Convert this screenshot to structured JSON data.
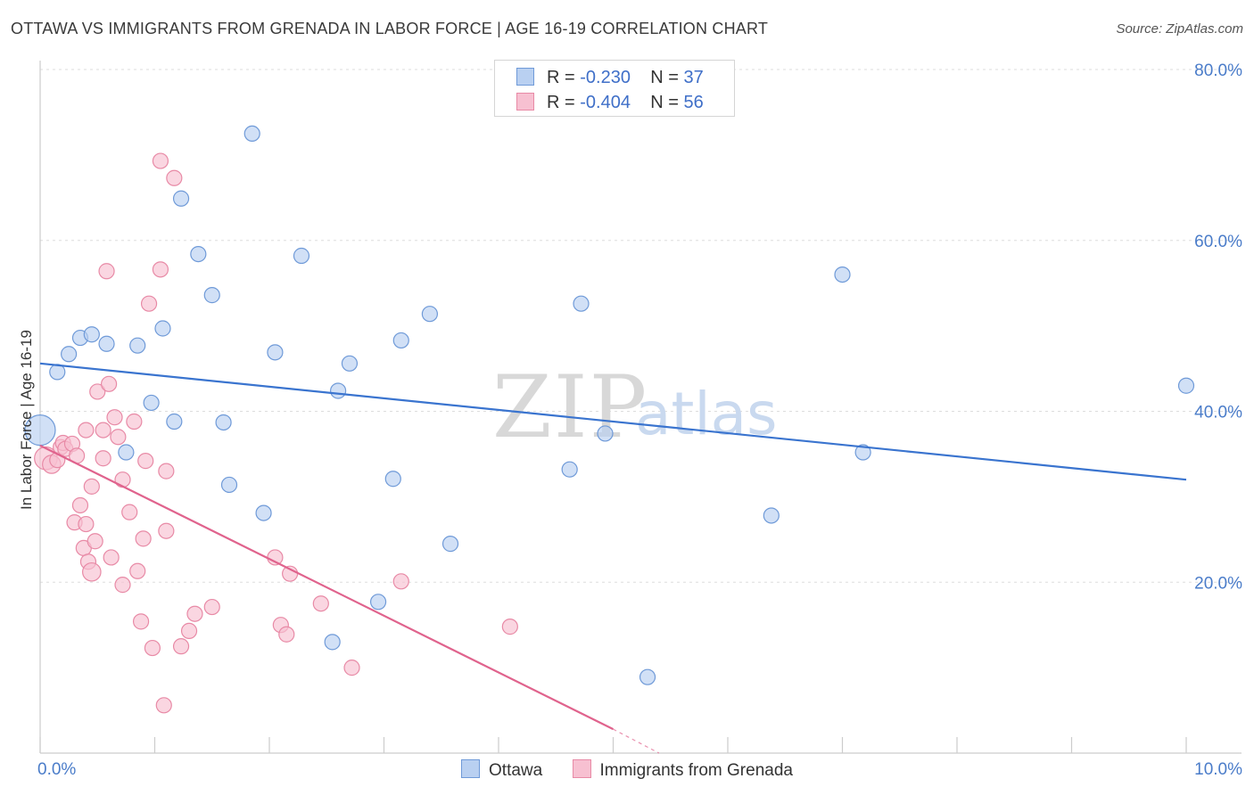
{
  "header": {
    "title": "OTTAWA VS IMMIGRANTS FROM GRENADA IN LABOR FORCE | AGE 16-19 CORRELATION CHART",
    "source": "Source: ZipAtlas.com"
  },
  "legend": {
    "r_label": "R =",
    "n_label": "N =",
    "series": [
      {
        "name": "Ottawa",
        "r": "-0.230",
        "n": "37",
        "fill": "#b9d0f1",
        "stroke": "#6f9ad8"
      },
      {
        "name": "Immigrants from Grenada",
        "r": "-0.404",
        "n": "56",
        "fill": "#f7c0d1",
        "stroke": "#e88aa6"
      }
    ]
  },
  "watermark": {
    "zip": "ZIP",
    "atlas": "atlas"
  },
  "chart_data": {
    "type": "scatter",
    "title": "OTTAWA VS IMMIGRANTS FROM GRENADA IN LABOR FORCE | AGE 16-19 CORRELATION CHART",
    "xlabel": "",
    "ylabel": "In Labor Force | Age 16-19",
    "xlim": [
      0,
      10
    ],
    "ylim": [
      0,
      80
    ],
    "x_tick_labels": [
      "0.0%",
      "10.0%"
    ],
    "y_ticks": [
      20,
      40,
      60,
      80
    ],
    "y_tick_labels": [
      "20.0%",
      "40.0%",
      "60.0%",
      "80.0%"
    ],
    "grid": true,
    "series": [
      {
        "name": "Ottawa",
        "color": "#3a74cf",
        "marker_fill": "#b9d0f1",
        "marker_stroke": "#6f9ad8",
        "trend": {
          "x1": 0,
          "y1": 45.6,
          "x2": 10,
          "y2": 32.0
        },
        "points": [
          [
            0.0,
            37.8,
            2
          ],
          [
            0.15,
            44.6,
            1
          ],
          [
            0.25,
            46.7,
            1
          ],
          [
            0.35,
            48.6,
            1
          ],
          [
            0.45,
            49.0,
            1
          ],
          [
            0.58,
            47.9,
            1
          ],
          [
            0.75,
            35.2,
            1
          ],
          [
            0.85,
            47.7,
            1
          ],
          [
            0.97,
            41.0,
            1
          ],
          [
            1.07,
            49.7,
            1
          ],
          [
            1.17,
            38.8,
            1
          ],
          [
            1.23,
            64.9,
            1
          ],
          [
            1.38,
            58.4,
            1
          ],
          [
            1.5,
            53.6,
            1
          ],
          [
            1.6,
            38.7,
            1
          ],
          [
            1.65,
            31.4,
            1
          ],
          [
            1.85,
            72.5,
            1
          ],
          [
            1.95,
            28.1,
            1
          ],
          [
            2.05,
            46.9,
            1
          ],
          [
            2.28,
            58.2,
            1
          ],
          [
            2.55,
            13.0,
            1
          ],
          [
            2.6,
            42.4,
            1
          ],
          [
            2.7,
            45.6,
            1
          ],
          [
            2.95,
            17.7,
            1
          ],
          [
            3.08,
            32.1,
            1
          ],
          [
            3.15,
            48.3,
            1
          ],
          [
            3.4,
            51.4,
            1
          ],
          [
            3.58,
            24.5,
            1
          ],
          [
            4.62,
            33.2,
            1
          ],
          [
            4.72,
            52.6,
            1
          ],
          [
            4.93,
            37.4,
            1
          ],
          [
            5.3,
            8.9,
            1
          ],
          [
            6.38,
            27.8,
            1
          ],
          [
            7.0,
            56.0,
            1
          ],
          [
            7.18,
            35.2,
            1
          ],
          [
            10.0,
            43.0,
            1
          ]
        ]
      },
      {
        "name": "Immigrants from Grenada",
        "color": "#e0638d",
        "marker_fill": "#f7c0d1",
        "marker_stroke": "#e88aa6",
        "trend": {
          "x1": 0,
          "y1": 36.0,
          "x2": 5.0,
          "y2": 2.8
        },
        "trend_dashed": {
          "x1": 5.0,
          "y1": 2.8,
          "x2": 5.4,
          "y2": 0.0
        },
        "points": [
          [
            0.05,
            34.5,
            1.5
          ],
          [
            0.1,
            33.8,
            1.2
          ],
          [
            0.15,
            34.3,
            1
          ],
          [
            0.18,
            35.8,
            1
          ],
          [
            0.2,
            36.3,
            1
          ],
          [
            0.22,
            35.6,
            1
          ],
          [
            0.28,
            36.2,
            1
          ],
          [
            0.3,
            27.0,
            1
          ],
          [
            0.32,
            34.8,
            1
          ],
          [
            0.35,
            29.0,
            1
          ],
          [
            0.38,
            24.0,
            1
          ],
          [
            0.4,
            26.8,
            1
          ],
          [
            0.4,
            37.8,
            1
          ],
          [
            0.42,
            22.4,
            1
          ],
          [
            0.45,
            31.2,
            1
          ],
          [
            0.45,
            21.2,
            1.2
          ],
          [
            0.48,
            24.8,
            1
          ],
          [
            0.5,
            42.3,
            1
          ],
          [
            0.55,
            37.8,
            1
          ],
          [
            0.55,
            34.5,
            1
          ],
          [
            0.58,
            56.4,
            1
          ],
          [
            0.6,
            43.2,
            1
          ],
          [
            0.62,
            22.9,
            1
          ],
          [
            0.65,
            39.3,
            1
          ],
          [
            0.68,
            37.0,
            1
          ],
          [
            0.72,
            19.7,
            1
          ],
          [
            0.72,
            32.0,
            1
          ],
          [
            0.78,
            28.2,
            1
          ],
          [
            0.82,
            38.8,
            1
          ],
          [
            0.85,
            21.3,
            1
          ],
          [
            0.88,
            15.4,
            1
          ],
          [
            0.9,
            25.1,
            1
          ],
          [
            0.92,
            34.2,
            1
          ],
          [
            0.95,
            52.6,
            1
          ],
          [
            0.98,
            12.3,
            1
          ],
          [
            1.05,
            56.6,
            1
          ],
          [
            1.05,
            69.3,
            1
          ],
          [
            1.08,
            5.6,
            1
          ],
          [
            1.1,
            26.0,
            1
          ],
          [
            1.1,
            33.0,
            1
          ],
          [
            1.17,
            67.3,
            1
          ],
          [
            1.23,
            12.5,
            1
          ],
          [
            1.3,
            14.3,
            1
          ],
          [
            1.35,
            16.3,
            1
          ],
          [
            1.5,
            17.1,
            1
          ],
          [
            2.05,
            22.9,
            1
          ],
          [
            2.1,
            15.0,
            1
          ],
          [
            2.15,
            13.9,
            1
          ],
          [
            2.18,
            21.0,
            1
          ],
          [
            2.45,
            17.5,
            1
          ],
          [
            2.72,
            10.0,
            1
          ],
          [
            3.15,
            20.1,
            1
          ],
          [
            4.1,
            14.8,
            1
          ]
        ]
      }
    ]
  }
}
